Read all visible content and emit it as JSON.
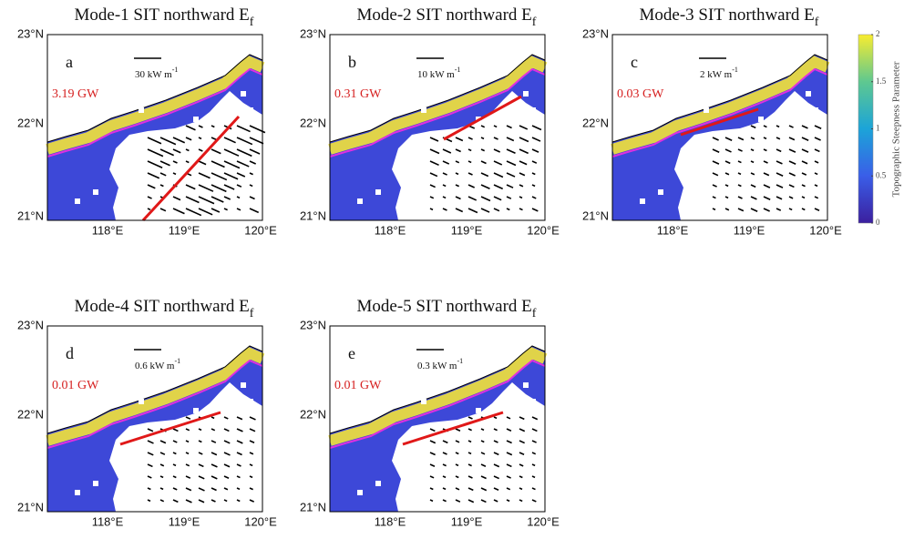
{
  "panels": [
    {
      "title": "Mode-1 SIT northward E",
      "title_sub": "f",
      "letter": "a",
      "scale": "30 kW m",
      "scale_exp": "-1",
      "power": "3.19 GW"
    },
    {
      "title": "Mode-2 SIT northward E",
      "title_sub": "f",
      "letter": "b",
      "scale": "10 kW m",
      "scale_exp": "-1",
      "power": "0.31 GW"
    },
    {
      "title": "Mode-3 SIT northward E",
      "title_sub": "f",
      "letter": "c",
      "scale": "2 kW m",
      "scale_exp": "-1",
      "power": "0.03 GW"
    },
    {
      "title": "Mode-4 SIT northward E",
      "title_sub": "f",
      "letter": "d",
      "scale": "0.6 kW m",
      "scale_exp": "-1",
      "power": "0.01 GW"
    },
    {
      "title": "Mode-5 SIT northward E",
      "title_sub": "f",
      "letter": "e",
      "scale": "0.3 kW m",
      "scale_exp": "-1",
      "power": "0.01 GW"
    }
  ],
  "lat_labels": [
    "23°N",
    "22°N",
    "21°N"
  ],
  "lon_labels": [
    "118°E",
    "119°E",
    "120°E"
  ],
  "colorbar": {
    "label": "Topographic Steepness Parameter",
    "lim": [
      0,
      2
    ],
    "ticks": [
      0,
      0.5,
      1,
      1.5,
      2
    ]
  }
}
